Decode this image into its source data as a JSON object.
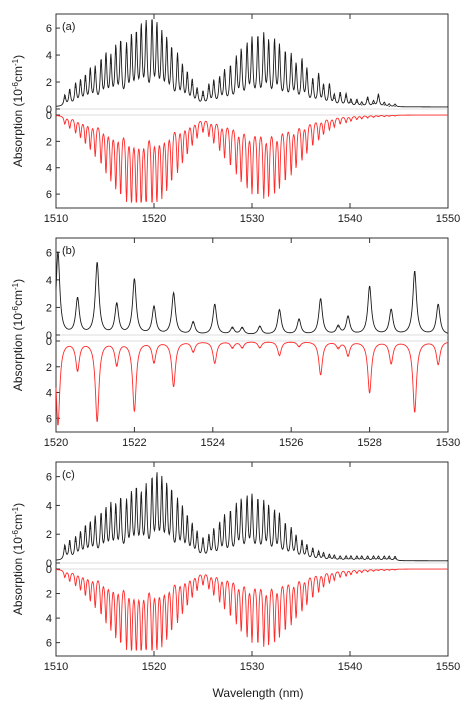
{
  "xlabel": "Wavelength (nm)",
  "ylabel": "Absorption (10",
  "ylabel_exp": "-6",
  "ylabel_unit": "cm",
  "ylabel_unit_exp": "-1",
  "ylabel_close": ")",
  "colors": {
    "measured": "#1a1a1a",
    "simulated": "#ff2a2a",
    "frame": "#333333"
  },
  "chart_data": [
    {
      "type": "line",
      "panel_label": "(a)",
      "xlim": [
        1510,
        1550
      ],
      "xticks": [
        1510,
        1520,
        1530,
        1540,
        1550
      ],
      "ylim_upper": [
        0,
        6.6
      ],
      "ylim_lower": [
        0,
        6.6
      ],
      "yticks_upper": [
        0,
        2,
        4,
        6
      ],
      "yticks_lower": [
        0,
        2,
        4,
        6
      ],
      "lower_inverted": true,
      "series": [
        {
          "role": "measured",
          "x": [
            1510.9,
            1511.4,
            1512.0,
            1512.5,
            1513.0,
            1513.5,
            1514.0,
            1514.6,
            1515.1,
            1515.6,
            1516.1,
            1516.6,
            1517.2,
            1517.7,
            1518.2,
            1518.7,
            1519.2,
            1519.8,
            1520.3,
            1520.8,
            1521.3,
            1521.8,
            1522.4,
            1522.9,
            1523.4,
            1523.9,
            1524.4,
            1525.0,
            1525.6,
            1526.1,
            1526.7,
            1527.2,
            1527.8,
            1528.4,
            1528.9,
            1529.5,
            1530.0,
            1530.6,
            1531.2,
            1531.7,
            1532.3,
            1532.8,
            1533.4,
            1534.0,
            1534.5,
            1535.1,
            1535.6,
            1536.2,
            1536.8,
            1537.3,
            1537.9,
            1538.4,
            1539.0,
            1539.6,
            1540.1,
            1540.7,
            1541.2,
            1541.8,
            1542.4,
            1542.9,
            1543.5,
            1544.0,
            1544.6
          ],
          "values": [
            0.8,
            1.2,
            1.6,
            1.8,
            2.1,
            2.6,
            2.7,
            3.2,
            3.6,
            3.4,
            4.1,
            4.5,
            4.2,
            4.8,
            5.0,
            5.5,
            5.9,
            6.3,
            5.6,
            5.0,
            4.6,
            4.0,
            3.6,
            2.8,
            2.3,
            1.8,
            1.2,
            1.0,
            1.5,
            1.8,
            2.0,
            2.5,
            2.8,
            3.4,
            3.9,
            4.3,
            4.7,
            4.9,
            5.0,
            4.5,
            4.6,
            4.2,
            3.8,
            3.6,
            2.9,
            3.3,
            2.6,
            1.9,
            2.3,
            1.5,
            1.6,
            0.8,
            1.0,
            0.9,
            0.5,
            0.5,
            0.3,
            0.7,
            0.4,
            0.9,
            0.3,
            0.2,
            0.2
          ]
        },
        {
          "role": "simulated",
          "x": [
            1510.9,
            1511.4,
            1512.0,
            1512.5,
            1513.0,
            1513.5,
            1514.0,
            1514.6,
            1515.1,
            1515.6,
            1516.1,
            1516.6,
            1517.2,
            1517.7,
            1518.2,
            1518.7,
            1519.2,
            1519.8,
            1520.3,
            1520.8,
            1521.3,
            1521.8,
            1522.4,
            1522.9,
            1523.4,
            1523.9,
            1524.4,
            1525.0,
            1525.6,
            1526.1,
            1526.7,
            1527.2,
            1527.8,
            1528.4,
            1528.9,
            1529.5,
            1530.0,
            1530.6,
            1531.2,
            1531.7,
            1532.3,
            1532.8,
            1533.4,
            1534.0,
            1534.5,
            1535.1,
            1535.6,
            1536.2,
            1536.8,
            1537.3,
            1537.9,
            1538.4,
            1539.0,
            1539.6,
            1540.1,
            1540.7,
            1541.2,
            1541.8,
            1542.4,
            1542.9,
            1543.5,
            1544.0,
            1544.6
          ],
          "values": [
            0.6,
            0.9,
            1.2,
            1.5,
            1.9,
            2.3,
            2.8,
            3.3,
            3.9,
            4.4,
            5.0,
            5.5,
            5.9,
            6.2,
            6.4,
            6.5,
            6.5,
            6.3,
            6.0,
            5.6,
            5.1,
            4.5,
            3.9,
            3.2,
            2.6,
            2.0,
            1.5,
            1.1,
            1.4,
            1.9,
            2.4,
            2.9,
            3.5,
            4.0,
            4.6,
            5.0,
            5.4,
            5.6,
            5.7,
            5.6,
            5.4,
            5.0,
            4.6,
            4.1,
            3.6,
            3.1,
            2.6,
            2.1,
            1.7,
            1.3,
            1.0,
            0.8,
            0.6,
            0.5,
            0.4,
            0.3,
            0.25,
            0.2,
            0.15,
            0.1,
            0.1,
            0.08,
            0.06
          ]
        }
      ]
    },
    {
      "type": "line",
      "panel_label": "(b)",
      "xlim": [
        1520,
        1530
      ],
      "xticks": [
        1520,
        1522,
        1524,
        1526,
        1528,
        1530
      ],
      "ylim_upper": [
        0,
        6.6
      ],
      "ylim_lower": [
        0,
        6.6
      ],
      "yticks_upper": [
        0,
        2,
        4,
        6
      ],
      "yticks_lower": [
        0,
        2,
        4,
        6
      ],
      "lower_inverted": true,
      "series": [
        {
          "role": "measured",
          "x": [
            1520.05,
            1520.55,
            1521.05,
            1521.55,
            1522.0,
            1522.5,
            1523.0,
            1523.5,
            1524.05,
            1524.5,
            1524.75,
            1525.2,
            1525.7,
            1526.2,
            1526.75,
            1527.2,
            1527.45,
            1528.0,
            1528.55,
            1529.15,
            1529.75
          ],
          "values": [
            6.0,
            2.6,
            5.2,
            2.2,
            4.0,
            2.0,
            3.0,
            0.9,
            2.2,
            0.5,
            0.5,
            0.6,
            1.8,
            1.1,
            2.6,
            0.6,
            1.3,
            3.5,
            1.8,
            4.6,
            2.2
          ]
        },
        {
          "role": "simulated",
          "x": [
            1520.05,
            1520.55,
            1521.05,
            1521.55,
            1522.0,
            1522.5,
            1523.0,
            1523.5,
            1524.05,
            1524.5,
            1524.75,
            1525.2,
            1525.7,
            1526.2,
            1526.75,
            1527.2,
            1527.45,
            1528.0,
            1528.55,
            1529.15,
            1529.75
          ],
          "values": [
            6.5,
            2.2,
            6.2,
            1.8,
            5.4,
            1.6,
            3.5,
            0.8,
            1.7,
            0.5,
            0.5,
            0.5,
            1.1,
            0.4,
            2.6,
            0.5,
            1.1,
            4.0,
            1.7,
            5.5,
            1.8
          ]
        }
      ]
    },
    {
      "type": "line",
      "panel_label": "(c)",
      "xlim": [
        1510,
        1550
      ],
      "xticks": [
        1510,
        1520,
        1530,
        1540,
        1550
      ],
      "ylim_upper": [
        0,
        6.6
      ],
      "ylim_lower": [
        0,
        6.6
      ],
      "yticks_upper": [
        0,
        2,
        4,
        6
      ],
      "yticks_lower": [
        0,
        2,
        4,
        6
      ],
      "lower_inverted": true,
      "series": [
        {
          "role": "measured",
          "x": [
            1510.9,
            1511.4,
            1512.0,
            1512.5,
            1513.0,
            1513.5,
            1514.0,
            1514.6,
            1515.1,
            1515.6,
            1516.1,
            1516.6,
            1517.2,
            1517.7,
            1518.2,
            1518.7,
            1519.2,
            1519.8,
            1520.3,
            1520.8,
            1521.3,
            1521.8,
            1522.4,
            1522.9,
            1523.4,
            1523.9,
            1524.4,
            1525.0,
            1525.6,
            1526.1,
            1526.7,
            1527.2,
            1527.8,
            1528.4,
            1528.9,
            1529.5,
            1530.0,
            1530.6,
            1531.2,
            1531.7,
            1532.3,
            1532.8,
            1533.4,
            1534.0,
            1534.5,
            1535.1,
            1535.6,
            1536.2,
            1536.8,
            1537.3,
            1537.9,
            1538.4,
            1539.0,
            1539.6,
            1540.1,
            1540.7,
            1541.2,
            1541.8,
            1542.4,
            1542.9,
            1543.5,
            1544.0,
            1544.6
          ],
          "values": [
            1.0,
            1.3,
            1.5,
            1.8,
            2.2,
            2.4,
            2.8,
            3.0,
            3.3,
            3.6,
            3.5,
            4.0,
            3.8,
            4.3,
            4.6,
            4.2,
            4.8,
            5.3,
            5.5,
            5.2,
            4.8,
            4.5,
            3.9,
            3.4,
            2.8,
            2.3,
            1.8,
            1.4,
            1.6,
            2.0,
            2.4,
            2.9,
            3.2,
            3.6,
            3.9,
            4.1,
            4.2,
            4.0,
            3.8,
            3.5,
            3.2,
            3.0,
            2.4,
            2.1,
            1.6,
            1.3,
            1.0,
            0.8,
            0.6,
            0.5,
            0.4,
            0.35,
            0.3,
            0.3,
            0.3,
            0.3,
            0.3,
            0.3,
            0.3,
            0.3,
            0.3,
            0.3,
            0.3
          ]
        },
        {
          "role": "simulated",
          "x": [
            1510.9,
            1511.4,
            1512.0,
            1512.5,
            1513.0,
            1513.5,
            1514.0,
            1514.6,
            1515.1,
            1515.6,
            1516.1,
            1516.6,
            1517.2,
            1517.7,
            1518.2,
            1518.7,
            1519.2,
            1519.8,
            1520.3,
            1520.8,
            1521.3,
            1521.8,
            1522.4,
            1522.9,
            1523.4,
            1523.9,
            1524.4,
            1525.0,
            1525.6,
            1526.1,
            1526.7,
            1527.2,
            1527.8,
            1528.4,
            1528.9,
            1529.5,
            1530.0,
            1530.6,
            1531.2,
            1531.7,
            1532.3,
            1532.8,
            1533.4,
            1534.0,
            1534.5,
            1535.1,
            1535.6,
            1536.2,
            1536.8,
            1537.3,
            1537.9,
            1538.4,
            1539.0,
            1539.6,
            1540.1,
            1540.7,
            1541.2,
            1541.8,
            1542.4,
            1542.9,
            1543.5,
            1544.0,
            1544.6
          ],
          "values": [
            0.6,
            0.9,
            1.2,
            1.5,
            1.9,
            2.3,
            2.8,
            3.3,
            3.9,
            4.4,
            5.0,
            5.5,
            5.9,
            6.2,
            6.4,
            6.5,
            6.5,
            6.3,
            6.0,
            5.6,
            5.1,
            4.5,
            3.9,
            3.2,
            2.6,
            2.0,
            1.5,
            1.1,
            1.4,
            1.9,
            2.4,
            2.9,
            3.5,
            4.0,
            4.6,
            5.0,
            5.4,
            5.6,
            5.7,
            5.6,
            5.4,
            5.0,
            4.6,
            4.1,
            3.6,
            3.1,
            2.6,
            2.1,
            1.7,
            1.3,
            1.0,
            0.8,
            0.6,
            0.5,
            0.4,
            0.3,
            0.25,
            0.2,
            0.15,
            0.1,
            0.1,
            0.08,
            0.06
          ]
        }
      ]
    }
  ]
}
